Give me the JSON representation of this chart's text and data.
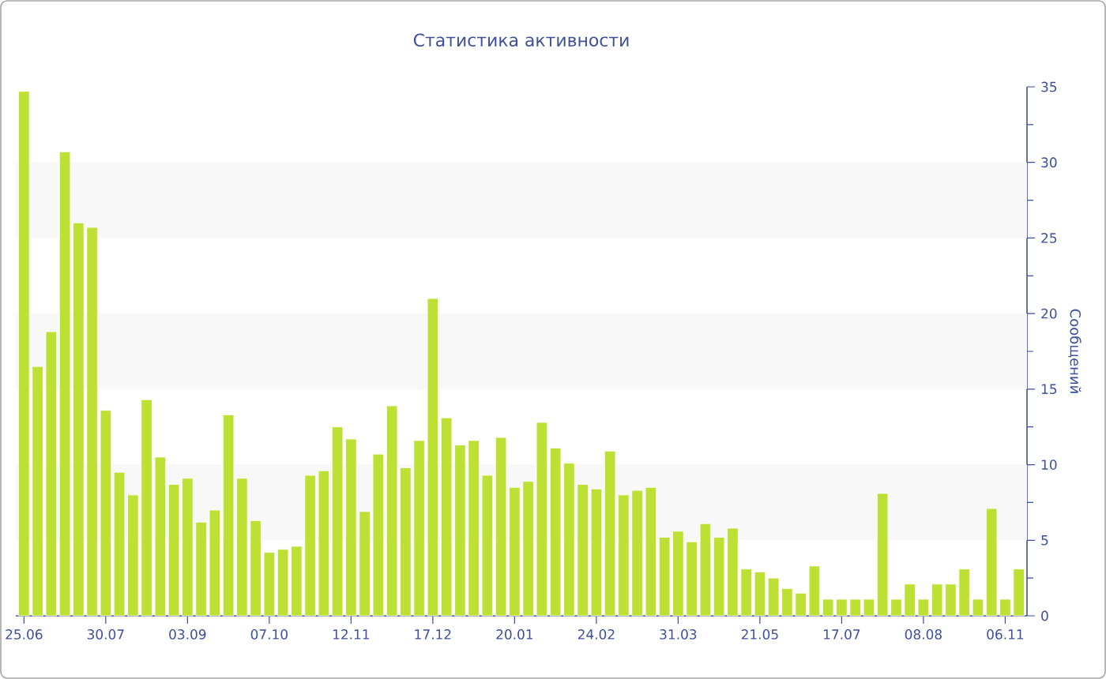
{
  "chart_data": {
    "type": "bar",
    "title": "Статистика активности",
    "ylabel": "Сообщений",
    "categories": [
      "25.06",
      null,
      null,
      null,
      null,
      null,
      "30.07",
      null,
      null,
      null,
      null,
      null,
      "03.09",
      null,
      null,
      null,
      null,
      null,
      "07.10",
      null,
      null,
      null,
      null,
      null,
      "12.11",
      null,
      null,
      null,
      null,
      null,
      "17.12",
      null,
      null,
      null,
      null,
      null,
      "20.01",
      null,
      null,
      null,
      null,
      null,
      "24.02",
      null,
      null,
      null,
      null,
      null,
      "31.03",
      null,
      null,
      null,
      null,
      null,
      "21.05",
      null,
      null,
      null,
      null,
      null,
      "17.07",
      null,
      null,
      null,
      null,
      null,
      "08.08",
      null,
      null,
      null,
      null,
      null,
      "06.11",
      null
    ],
    "values": [
      34.7,
      16.5,
      18.8,
      30.7,
      26,
      25.7,
      13.6,
      9.5,
      8,
      14.3,
      10.5,
      8.7,
      9.1,
      6.2,
      7,
      13.3,
      9.1,
      6.3,
      4.2,
      4.4,
      4.6,
      9.3,
      9.6,
      12.5,
      11.7,
      6.9,
      10.7,
      13.9,
      9.8,
      11.6,
      21,
      13.1,
      11.3,
      11.6,
      9.3,
      11.8,
      8.5,
      8.9,
      12.8,
      11.1,
      10.1,
      8.7,
      8.4,
      10.9,
      8,
      8.3,
      8.5,
      5.2,
      5.6,
      4.9,
      6.1,
      5.2,
      5.8,
      3.1,
      2.9,
      2.5,
      1.8,
      1.5,
      3.3,
      1.1,
      1.1,
      1.1,
      1.1,
      8.1,
      1.1,
      2.1,
      1.1,
      2.1,
      2.1,
      3.1,
      1.1,
      7.1,
      1.1,
      3.1
    ],
    "color": "#bde034",
    "ylim": [
      0,
      35
    ],
    "yticks": [
      0,
      5,
      10,
      15,
      20,
      25,
      30,
      35
    ],
    "bands": [
      {
        "axis": "y",
        "from": 5,
        "to": 10,
        "color": "#f8f8f8"
      },
      {
        "axis": "y",
        "from": 15,
        "to": 20,
        "color": "#f8f8f8"
      },
      {
        "axis": "y",
        "from": 25,
        "to": 30,
        "color": "#f8f8f8"
      }
    ],
    "grid": false
  }
}
